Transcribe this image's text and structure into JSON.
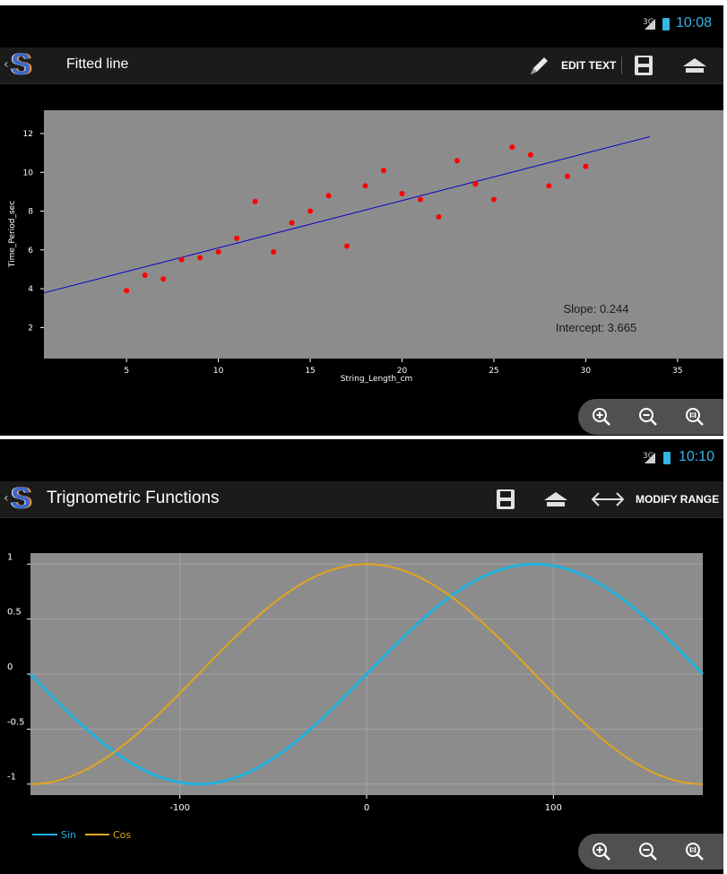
{
  "screen1": {
    "status": {
      "network": "3G",
      "time": "10:08"
    },
    "title": "Fitted line",
    "actions": {
      "edit_text": "EDIT TEXT"
    },
    "annotation": {
      "slope": "Slope: 0.244",
      "intercept": "Intercept: 3.665"
    }
  },
  "screen2": {
    "status": {
      "network": "3G",
      "time": "10:10"
    },
    "title": "Trignometric Functions",
    "actions": {
      "modify_range": "MODIFY RANGE"
    }
  },
  "icons": [
    "app-logo-icon",
    "pencil-icon",
    "save-icon",
    "home-icon",
    "horizontal-arrows-icon",
    "zoom-in-icon",
    "zoom-out-icon",
    "zoom-reset-icon"
  ],
  "colors": {
    "plot_bg": "#8c8c8c",
    "points": "#ff0000",
    "fit_line": "#0000cc",
    "sin": "#1fb0dd",
    "cos": "#e2a51b",
    "clock": "#33b5e5"
  },
  "chart_data": [
    {
      "type": "scatter",
      "title": "",
      "xlabel": "String_Length_cm",
      "ylabel": "Time_Period_sec",
      "xlim": [
        0.5,
        37.5
      ],
      "ylim": [
        0.4,
        13.2
      ],
      "xticks": [
        5,
        10,
        15,
        20,
        25,
        30,
        35
      ],
      "yticks": [
        2,
        4,
        6,
        8,
        10,
        12
      ],
      "series": [
        {
          "x": [
            5,
            6,
            7,
            8,
            9,
            10,
            11,
            12,
            13,
            14,
            15,
            16,
            17,
            18,
            19,
            20,
            21,
            22,
            23,
            24,
            25,
            26,
            27,
            28,
            29,
            30
          ],
          "y": [
            3.9,
            4.7,
            4.5,
            5.5,
            5.6,
            5.9,
            6.6,
            8.5,
            5.9,
            7.4,
            8.0,
            8.8,
            6.2,
            9.3,
            10.1,
            8.9,
            8.6,
            7.7,
            10.6,
            9.4,
            8.6,
            11.3,
            10.9,
            9.3,
            9.8,
            10.3
          ]
        }
      ],
      "fit": {
        "slope": 0.244,
        "intercept": 3.665,
        "x_range": [
          0.5,
          33.5
        ]
      },
      "grid": false
    },
    {
      "type": "line",
      "title": "",
      "xlabel": "",
      "ylabel": "",
      "xlim": [
        -180,
        180
      ],
      "ylim": [
        -1.1,
        1.1
      ],
      "xticks": [
        -100,
        0,
        100
      ],
      "yticks": [
        1,
        0.5,
        0,
        -0.5,
        -1
      ],
      "ytick_labels": [
        "1",
        "0.5",
        "0",
        "-0.5",
        "-1"
      ],
      "series": [
        {
          "name": "Sin",
          "function": "sin",
          "domain_deg": [
            -180,
            180
          ]
        },
        {
          "name": "Cos",
          "function": "cos",
          "domain_deg": [
            -180,
            180
          ]
        }
      ],
      "grid": true,
      "legend": "bottom-left"
    }
  ]
}
